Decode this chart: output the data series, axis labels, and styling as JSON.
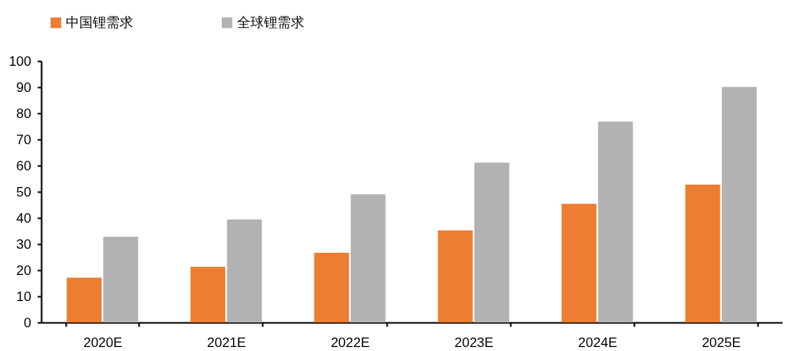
{
  "chart_data": {
    "type": "bar",
    "categories": [
      "2020E",
      "2021E",
      "2022E",
      "2023E",
      "2024E",
      "2025E"
    ],
    "series": [
      {
        "name": "中国锂需求",
        "color": "#ed7d31",
        "values": [
          17.1,
          21.3,
          26.7,
          35.2,
          45.4,
          52.7
        ]
      },
      {
        "name": "全球锂需求",
        "color": "#b2b2b2",
        "values": [
          32.8,
          39.4,
          49.0,
          61.1,
          76.8,
          90.1
        ]
      }
    ],
    "ylim": [
      0,
      100
    ],
    "yticks": [
      0,
      10,
      20,
      30,
      40,
      50,
      60,
      70,
      80,
      90,
      100
    ],
    "grid": false,
    "legend": "top"
  }
}
